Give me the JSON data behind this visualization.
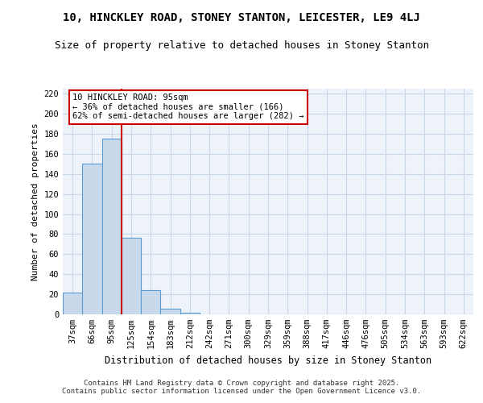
{
  "title1": "10, HINCKLEY ROAD, STONEY STANTON, LEICESTER, LE9 4LJ",
  "title2": "Size of property relative to detached houses in Stoney Stanton",
  "xlabel": "Distribution of detached houses by size in Stoney Stanton",
  "ylabel": "Number of detached properties",
  "categories": [
    "37sqm",
    "66sqm",
    "95sqm",
    "125sqm",
    "154sqm",
    "183sqm",
    "212sqm",
    "242sqm",
    "271sqm",
    "300sqm",
    "329sqm",
    "359sqm",
    "388sqm",
    "417sqm",
    "446sqm",
    "476sqm",
    "505sqm",
    "534sqm",
    "563sqm",
    "593sqm",
    "622sqm"
  ],
  "values": [
    22,
    150,
    175,
    76,
    24,
    6,
    2,
    0,
    0,
    0,
    0,
    0,
    0,
    0,
    0,
    0,
    0,
    0,
    0,
    0,
    0
  ],
  "bar_color": "#c9d9ec",
  "bar_edge_color": "#5b9bd5",
  "grid_color": "#c8d8e8",
  "background_color": "#eef3f9",
  "red_line_index": 2,
  "annotation_line1": "10 HINCKLEY ROAD: 95sqm",
  "annotation_line2": "← 36% of detached houses are smaller (166)",
  "annotation_line3": "62% of semi-detached houses are larger (282) →",
  "annotation_box_color": "#ffffff",
  "annotation_box_edge": "#cc0000",
  "red_line_color": "#cc0000",
  "ylim": [
    0,
    225
  ],
  "yticks": [
    0,
    20,
    40,
    60,
    80,
    100,
    120,
    140,
    160,
    180,
    200,
    220
  ],
  "footer1": "Contains HM Land Registry data © Crown copyright and database right 2025.",
  "footer2": "Contains public sector information licensed under the Open Government Licence v3.0.",
  "title1_fontsize": 10,
  "title2_fontsize": 9,
  "xlabel_fontsize": 8.5,
  "ylabel_fontsize": 8,
  "tick_fontsize": 7.5,
  "annotation_fontsize": 7.5,
  "footer_fontsize": 6.5
}
